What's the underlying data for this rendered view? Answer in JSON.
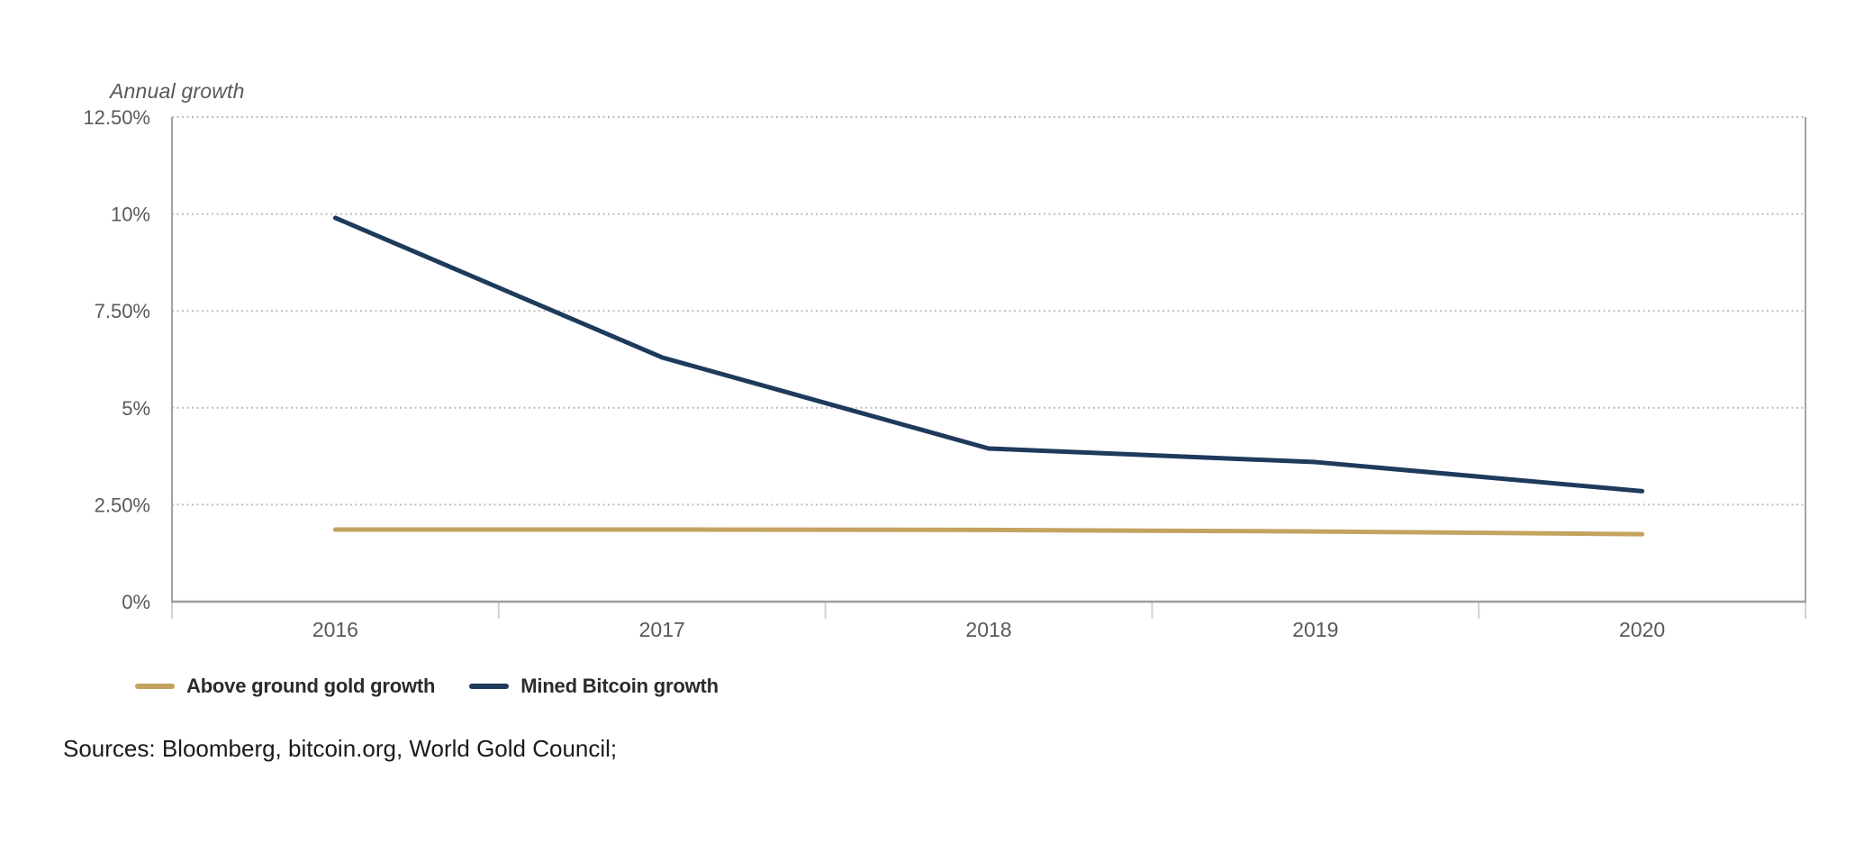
{
  "chart_data": {
    "type": "line",
    "title": "Annual growth",
    "categories": [
      "2016",
      "2017",
      "2018",
      "2019",
      "2020"
    ],
    "series": [
      {
        "name": "Above ground gold growth",
        "color": "#c3a35f",
        "values": [
          1.86,
          1.86,
          1.85,
          1.81,
          1.74
        ]
      },
      {
        "name": "Mined Bitcoin growth",
        "color": "#1e3a5c",
        "values": [
          9.9,
          6.3,
          3.95,
          3.6,
          2.85
        ]
      }
    ],
    "y_ticks": [
      {
        "value": 12.5,
        "label": "12.50%"
      },
      {
        "value": 10,
        "label": "10%"
      },
      {
        "value": 7.5,
        "label": "7.50%"
      },
      {
        "value": 5,
        "label": "5%"
      },
      {
        "value": 2.5,
        "label": "2.50%"
      },
      {
        "value": 0,
        "label": "0%"
      }
    ],
    "ylim": [
      0,
      12.5
    ],
    "xlabel": "",
    "ylabel": "Annual growth",
    "grid": "horizontal-dotted",
    "legend_position": "bottom-left",
    "colors": {
      "axis": "#a3a3a3",
      "grid": "#bcbcbc",
      "tick": "#ccd4da",
      "axis_label": "#595959"
    }
  },
  "footer": {
    "sources": "Sources: Bloomberg, bitcoin.org, World Gold Council;"
  }
}
